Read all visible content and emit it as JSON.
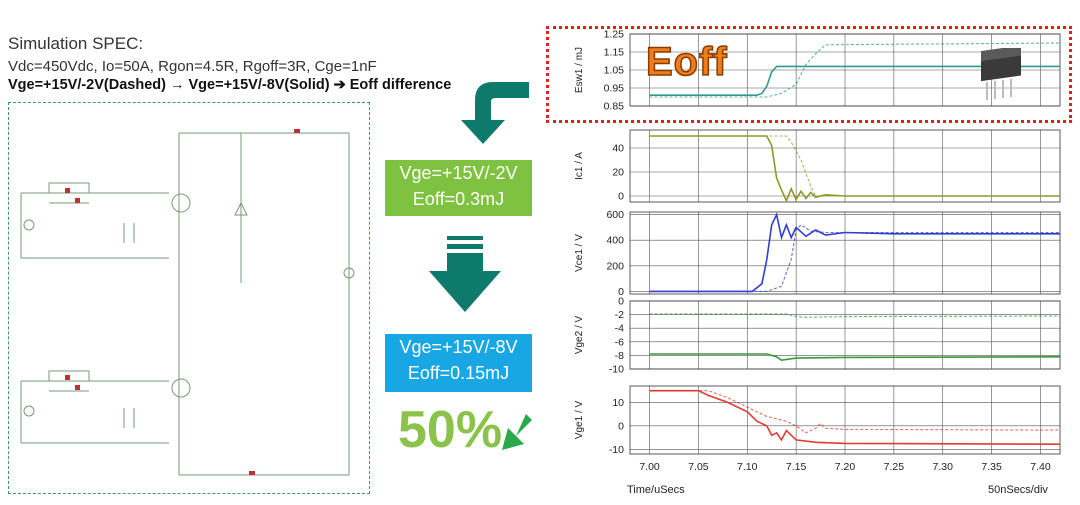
{
  "spec": {
    "title": "Simulation SPEC:",
    "params": "Vdc=450Vdc, Io=50A, Rgon=4.5R, Rgoff=3R, Cge=1nF",
    "comparison": "Vge=+15V/-2V(Dashed) → Vge=+15V/-8V(Solid)  ➔ Eoff difference"
  },
  "cases": [
    {
      "line1": "Vge=+15V/-2V",
      "line2": "Eoff=0.3mJ",
      "color": "#7fc241"
    },
    {
      "line1": "Vge=+15V/-8V",
      "line2": "Eoff=0.15mJ",
      "color": "#18a7e3"
    }
  ],
  "reduction": "50%",
  "eoff_label": "Eoff",
  "x_axis": {
    "label": "Time/uSecs",
    "per_div": "50nSecs/div",
    "ticks": [
      "7.00",
      "7.05",
      "7.10",
      "7.15",
      "7.20",
      "7.25",
      "7.30",
      "7.35",
      "7.40"
    ]
  },
  "colors": {
    "arrow_teal": "#0e7a6c",
    "highlight_red": "#e02020",
    "eoff_orange": "#ef7d1a",
    "reduction_green": "#8bc34a"
  },
  "chart_data": [
    {
      "type": "line",
      "ylabel": "Esw1 / mJ",
      "ylim": [
        0.85,
        1.25
      ],
      "yticks": [
        "1.25",
        "1.15",
        "1.05",
        "0.95",
        "0.85"
      ],
      "color": "#2e9b8f",
      "series": [
        {
          "style": "solid",
          "points": [
            [
              7.0,
              0.91
            ],
            [
              7.11,
              0.91
            ],
            [
              7.115,
              0.92
            ],
            [
              7.12,
              0.96
            ],
            [
              7.125,
              1.04
            ],
            [
              7.13,
              1.07
            ],
            [
              7.2,
              1.07
            ],
            [
              7.42,
              1.07
            ]
          ]
        },
        {
          "style": "dashed",
          "points": [
            [
              7.0,
              0.9
            ],
            [
              7.12,
              0.9
            ],
            [
              7.135,
              0.92
            ],
            [
              7.15,
              0.97
            ],
            [
              7.16,
              1.08
            ],
            [
              7.17,
              1.14
            ],
            [
              7.18,
              1.19
            ],
            [
              7.42,
              1.2
            ]
          ]
        }
      ]
    },
    {
      "type": "line",
      "ylabel": "Ic1 / A",
      "ylim": [
        -5,
        55
      ],
      "yticks": [
        "40",
        "20",
        "0"
      ],
      "color": "#8c9a28",
      "series": [
        {
          "style": "solid",
          "points": [
            [
              7.0,
              50
            ],
            [
              7.12,
              50
            ],
            [
              7.125,
              42
            ],
            [
              7.13,
              15
            ],
            [
              7.135,
              5
            ],
            [
              7.14,
              -4
            ],
            [
              7.145,
              6
            ],
            [
              7.15,
              -3
            ],
            [
              7.155,
              4
            ],
            [
              7.16,
              -2
            ],
            [
              7.165,
              3
            ],
            [
              7.17,
              -1
            ],
            [
              7.18,
              1
            ],
            [
              7.2,
              0
            ],
            [
              7.42,
              0
            ]
          ]
        },
        {
          "style": "dashed",
          "points": [
            [
              7.0,
              50
            ],
            [
              7.14,
              50
            ],
            [
              7.145,
              45
            ],
            [
              7.155,
              30
            ],
            [
              7.165,
              8
            ],
            [
              7.17,
              0
            ],
            [
              7.42,
              0
            ]
          ]
        }
      ]
    },
    {
      "type": "line",
      "ylabel": "Vce1 / V",
      "ylim": [
        -20,
        620
      ],
      "yticks": [
        "600",
        "400",
        "200",
        "0"
      ],
      "color": "#2f3fcf",
      "series": [
        {
          "style": "solid",
          "points": [
            [
              7.0,
              0
            ],
            [
              7.105,
              0
            ],
            [
              7.115,
              60
            ],
            [
              7.12,
              250
            ],
            [
              7.125,
              520
            ],
            [
              7.13,
              600
            ],
            [
              7.135,
              420
            ],
            [
              7.14,
              520
            ],
            [
              7.145,
              420
            ],
            [
              7.15,
              500
            ],
            [
              7.16,
              430
            ],
            [
              7.17,
              480
            ],
            [
              7.18,
              440
            ],
            [
              7.2,
              460
            ],
            [
              7.25,
              450
            ],
            [
              7.42,
              450
            ]
          ]
        },
        {
          "style": "dashed",
          "points": [
            [
              7.0,
              0
            ],
            [
              7.12,
              0
            ],
            [
              7.135,
              40
            ],
            [
              7.145,
              250
            ],
            [
              7.15,
              480
            ],
            [
              7.155,
              520
            ],
            [
              7.165,
              470
            ],
            [
              7.18,
              460
            ],
            [
              7.42,
              460
            ]
          ]
        }
      ]
    },
    {
      "type": "line",
      "ylabel": "Vge2 / V",
      "ylim": [
        -10,
        0
      ],
      "yticks": [
        "0",
        "-2",
        "-4",
        "-6",
        "-8",
        "-10"
      ],
      "color": "#3a9a3a",
      "series": [
        {
          "style": "solid",
          "points": [
            [
              7.0,
              -7.8
            ],
            [
              7.12,
              -7.8
            ],
            [
              7.13,
              -8.2
            ],
            [
              7.135,
              -8.7
            ],
            [
              7.15,
              -8.4
            ],
            [
              7.2,
              -8.3
            ],
            [
              7.42,
              -8.2
            ]
          ]
        },
        {
          "style": "dashed",
          "points": [
            [
              7.0,
              -1.9
            ],
            [
              7.14,
              -1.9
            ],
            [
              7.15,
              -2.3
            ],
            [
              7.16,
              -2.4
            ],
            [
              7.2,
              -2.3
            ],
            [
              7.42,
              -2.2
            ]
          ]
        }
      ]
    },
    {
      "type": "line",
      "ylabel": "Vge1 / V",
      "ylim": [
        -12,
        17
      ],
      "yticks": [
        "10",
        "0",
        "-10"
      ],
      "color": "#e23b33",
      "series": [
        {
          "style": "solid",
          "points": [
            [
              7.0,
              15
            ],
            [
              7.05,
              15
            ],
            [
              7.06,
              13
            ],
            [
              7.08,
              10
            ],
            [
              7.1,
              6
            ],
            [
              7.11,
              2
            ],
            [
              7.12,
              0
            ],
            [
              7.125,
              -4
            ],
            [
              7.13,
              -3
            ],
            [
              7.135,
              -6
            ],
            [
              7.14,
              -2
            ],
            [
              7.15,
              -6
            ],
            [
              7.17,
              -7
            ],
            [
              7.2,
              -7.5
            ],
            [
              7.42,
              -7.8
            ]
          ]
        },
        {
          "style": "dashed",
          "points": [
            [
              7.0,
              15
            ],
            [
              7.06,
              15
            ],
            [
              7.08,
              12
            ],
            [
              7.1,
              8
            ],
            [
              7.12,
              4
            ],
            [
              7.14,
              2
            ],
            [
              7.15,
              0
            ],
            [
              7.16,
              -3
            ],
            [
              7.17,
              -1
            ],
            [
              7.175,
              1
            ],
            [
              7.18,
              -1
            ],
            [
              7.2,
              -1.5
            ],
            [
              7.42,
              -1.8
            ]
          ]
        }
      ]
    }
  ]
}
